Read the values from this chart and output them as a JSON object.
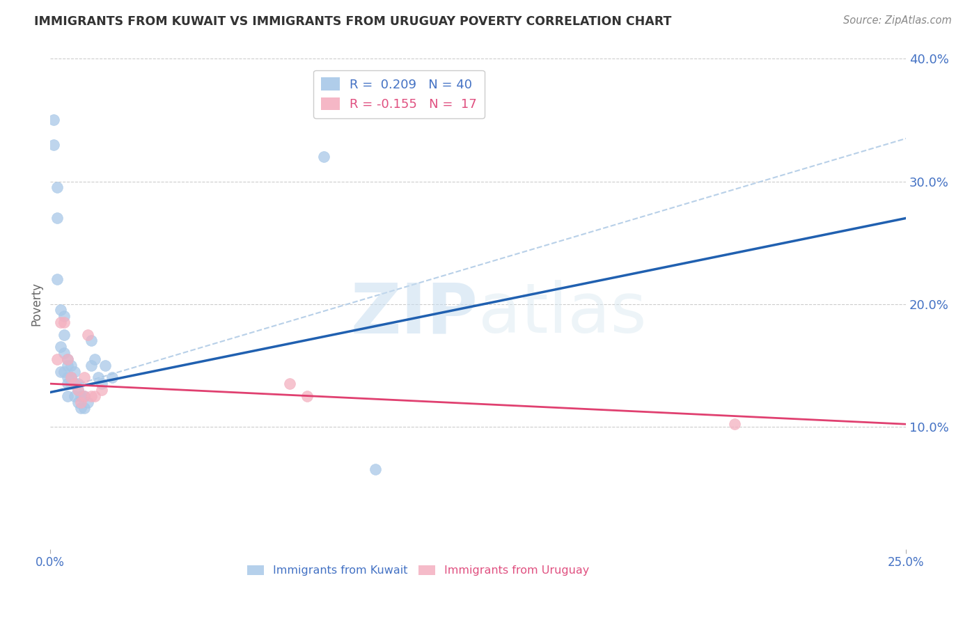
{
  "title": "IMMIGRANTS FROM KUWAIT VS IMMIGRANTS FROM URUGUAY POVERTY CORRELATION CHART",
  "source": "Source: ZipAtlas.com",
  "ylabel": "Poverty",
  "watermark": "ZIPatlas",
  "xlim": [
    0.0,
    0.25
  ],
  "ylim": [
    0.0,
    0.4
  ],
  "xtick_positions": [
    0.0,
    0.25
  ],
  "xtick_labels": [
    "0.0%",
    "25.0%"
  ],
  "yticks_right": [
    0.1,
    0.2,
    0.3,
    0.4
  ],
  "ytick_labels_right": [
    "10.0%",
    "20.0%",
    "30.0%",
    "40.0%"
  ],
  "yticks_grid": [
    0.1,
    0.2,
    0.3,
    0.4
  ],
  "kuwait_R": 0.209,
  "kuwait_N": 40,
  "uruguay_R": -0.155,
  "uruguay_N": 17,
  "kuwait_color": "#a8c8e8",
  "uruguay_color": "#f4b0c0",
  "kuwait_line_color": "#2060b0",
  "uruguay_line_color": "#e04070",
  "dashed_line_color": "#b8d0e8",
  "kuwait_points_x": [
    0.001,
    0.001,
    0.002,
    0.002,
    0.002,
    0.003,
    0.003,
    0.003,
    0.004,
    0.004,
    0.004,
    0.004,
    0.005,
    0.005,
    0.005,
    0.005,
    0.005,
    0.006,
    0.006,
    0.006,
    0.007,
    0.007,
    0.007,
    0.008,
    0.008,
    0.008,
    0.009,
    0.009,
    0.01,
    0.01,
    0.011,
    0.012,
    0.012,
    0.013,
    0.014,
    0.015,
    0.016,
    0.018,
    0.08,
    0.095
  ],
  "kuwait_points_y": [
    0.35,
    0.33,
    0.295,
    0.27,
    0.22,
    0.195,
    0.165,
    0.145,
    0.19,
    0.175,
    0.16,
    0.145,
    0.155,
    0.15,
    0.14,
    0.135,
    0.125,
    0.15,
    0.14,
    0.135,
    0.145,
    0.135,
    0.125,
    0.135,
    0.13,
    0.12,
    0.125,
    0.115,
    0.125,
    0.115,
    0.12,
    0.17,
    0.15,
    0.155,
    0.14,
    0.135,
    0.15,
    0.14,
    0.32,
    0.065
  ],
  "uruguay_points_x": [
    0.002,
    0.003,
    0.004,
    0.005,
    0.006,
    0.007,
    0.008,
    0.009,
    0.01,
    0.01,
    0.011,
    0.012,
    0.013,
    0.015,
    0.07,
    0.075,
    0.2
  ],
  "uruguay_points_y": [
    0.155,
    0.185,
    0.185,
    0.155,
    0.14,
    0.135,
    0.13,
    0.12,
    0.14,
    0.125,
    0.175,
    0.125,
    0.125,
    0.13,
    0.135,
    0.125,
    0.102
  ],
  "kuwait_trend_x": [
    0.0,
    0.25
  ],
  "kuwait_trend_y": [
    0.128,
    0.27
  ],
  "uruguay_trend_x": [
    0.0,
    0.25
  ],
  "uruguay_trend_y": [
    0.135,
    0.102
  ],
  "dashed_trend_x": [
    0.0,
    0.25
  ],
  "dashed_trend_y": [
    0.128,
    0.335
  ],
  "legend_labels": [
    "Immigrants from Kuwait",
    "Immigrants from Uruguay"
  ],
  "background_color": "#ffffff",
  "grid_color": "#cccccc"
}
